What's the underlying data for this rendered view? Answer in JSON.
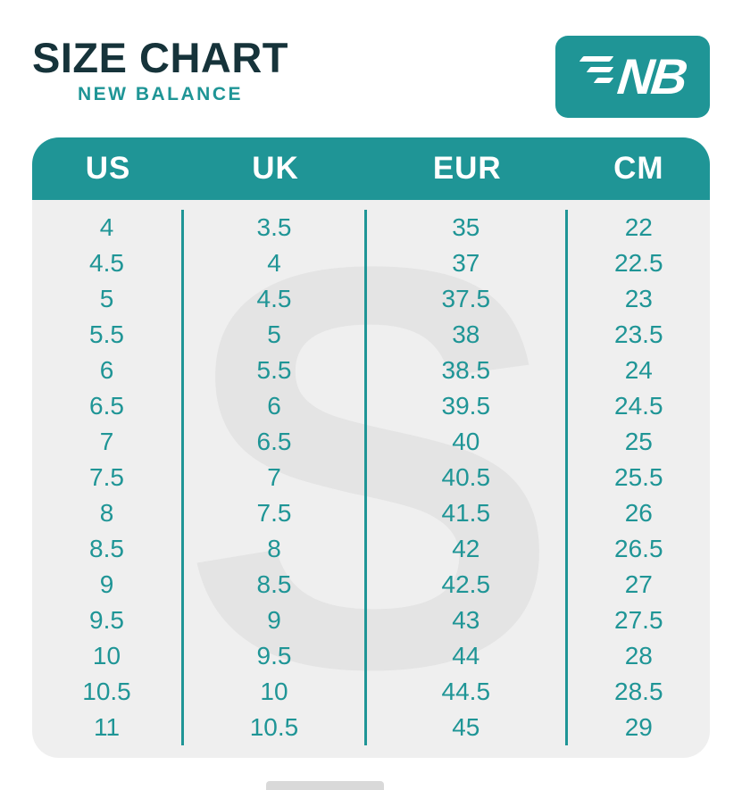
{
  "header": {
    "title": "SIZE CHART",
    "subtitle": "NEW BALANCE",
    "logo_text": "NB"
  },
  "colors": {
    "teal": "#1f9596",
    "table_bg": "#efefef",
    "title": "#16333a",
    "watermark": "#e4e4e4",
    "header_text": "#ffffff"
  },
  "watermark_glyph": "S",
  "chart_data": {
    "type": "table",
    "title": "SIZE CHART - NEW BALANCE",
    "columns": [
      "US",
      "UK",
      "EUR",
      "CM"
    ],
    "rows": [
      [
        "4",
        "3.5",
        "35",
        "22"
      ],
      [
        "4.5",
        "4",
        "37",
        "22.5"
      ],
      [
        "5",
        "4.5",
        "37.5",
        "23"
      ],
      [
        "5.5",
        "5",
        "38",
        "23.5"
      ],
      [
        "6",
        "5.5",
        "38.5",
        "24"
      ],
      [
        "6.5",
        "6",
        "39.5",
        "24.5"
      ],
      [
        "7",
        "6.5",
        "40",
        "25"
      ],
      [
        "7.5",
        "7",
        "40.5",
        "25.5"
      ],
      [
        "8",
        "7.5",
        "41.5",
        "26"
      ],
      [
        "8.5",
        "8",
        "42",
        "26.5"
      ],
      [
        "9",
        "8.5",
        "42.5",
        "27"
      ],
      [
        "9.5",
        "9",
        "43",
        "27.5"
      ],
      [
        "10",
        "9.5",
        "44",
        "28"
      ],
      [
        "10.5",
        "10",
        "44.5",
        "28.5"
      ],
      [
        "11",
        "10.5",
        "45",
        "29"
      ]
    ]
  }
}
